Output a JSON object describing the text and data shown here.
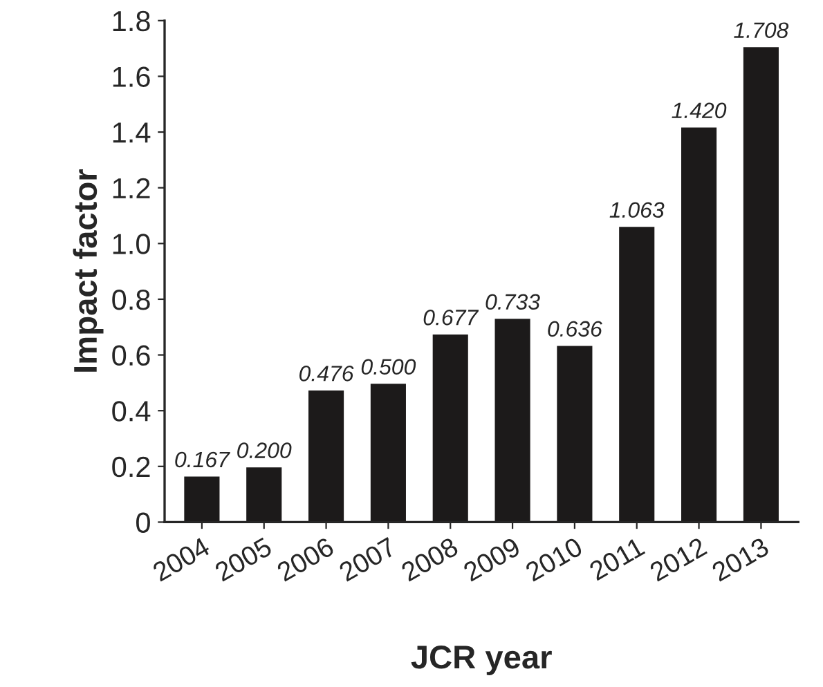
{
  "chart_data": {
    "type": "bar",
    "xlabel": "JCR year",
    "ylabel": "Impact factor",
    "categories": [
      "2004",
      "2005",
      "2006",
      "2007",
      "2008",
      "2009",
      "2010",
      "2011",
      "2012",
      "2013"
    ],
    "values": [
      0.167,
      0.2,
      0.476,
      0.5,
      0.677,
      0.733,
      0.636,
      1.063,
      1.42,
      1.708
    ],
    "value_labels": [
      "0.167",
      "0.200",
      "0.476",
      "0.500",
      "0.677",
      "0.733",
      "0.636",
      "1.063",
      "1.420",
      "1.708"
    ],
    "color": "#1c1a1a",
    "ylim": [
      0,
      1.8
    ],
    "yticks": [
      0,
      {
        "value": 0.2,
        "label": "0.2"
      },
      {
        "value": 0.4,
        "label": "0.4"
      },
      {
        "value": 0.6,
        "label": "0.6"
      },
      {
        "value": 0.8,
        "label": "0.8"
      },
      {
        "value": 1.0,
        "label": "1.0"
      },
      {
        "value": 1.2,
        "label": "1.2"
      },
      {
        "value": 1.4,
        "label": "1.4"
      },
      {
        "value": 1.6,
        "label": "1.6"
      },
      {
        "value": 1.8,
        "label": "1.8"
      }
    ],
    "grid": false
  }
}
